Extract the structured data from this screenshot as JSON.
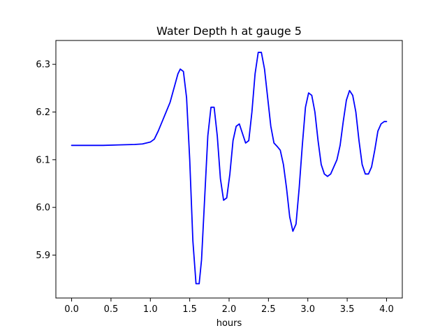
{
  "chart_data": {
    "type": "line",
    "title": "Water Depth h at gauge 5",
    "xlabel": "hours",
    "ylabel": "",
    "xlim": [
      -0.2,
      4.2
    ],
    "ylim": [
      5.81,
      6.35
    ],
    "grid": false,
    "x_ticks": [
      0.0,
      0.5,
      1.0,
      1.5,
      2.0,
      2.5,
      3.0,
      3.5,
      4.0
    ],
    "x_tick_labels": [
      "0.0",
      "0.5",
      "1.0",
      "1.5",
      "2.0",
      "2.5",
      "3.0",
      "3.5",
      "4.0"
    ],
    "y_ticks": [
      5.9,
      6.0,
      6.1,
      6.2,
      6.3
    ],
    "y_tick_labels": [
      "5.9",
      "6.0",
      "6.1",
      "6.2",
      "6.3"
    ],
    "series": [
      {
        "color": "#0000ff",
        "x": [
          0.0,
          0.2,
          0.4,
          0.6,
          0.8,
          0.9,
          1.0,
          1.05,
          1.1,
          1.15,
          1.2,
          1.25,
          1.3,
          1.35,
          1.38,
          1.42,
          1.46,
          1.5,
          1.54,
          1.58,
          1.62,
          1.65,
          1.69,
          1.73,
          1.77,
          1.81,
          1.85,
          1.89,
          1.93,
          1.97,
          2.01,
          2.05,
          2.09,
          2.13,
          2.17,
          2.21,
          2.25,
          2.29,
          2.33,
          2.37,
          2.41,
          2.45,
          2.49,
          2.53,
          2.57,
          2.61,
          2.65,
          2.69,
          2.73,
          2.77,
          2.81,
          2.85,
          2.89,
          2.93,
          2.97,
          3.01,
          3.05,
          3.09,
          3.13,
          3.17,
          3.21,
          3.25,
          3.29,
          3.33,
          3.37,
          3.41,
          3.45,
          3.49,
          3.53,
          3.57,
          3.61,
          3.65,
          3.69,
          3.73,
          3.77,
          3.81,
          3.85,
          3.89,
          3.93,
          3.97,
          4.0
        ],
        "y": [
          6.13,
          6.13,
          6.13,
          6.131,
          6.132,
          6.133,
          6.137,
          6.143,
          6.16,
          6.18,
          6.2,
          6.22,
          6.25,
          6.28,
          6.29,
          6.285,
          6.23,
          6.1,
          5.93,
          5.84,
          5.84,
          5.89,
          6.02,
          6.15,
          6.21,
          6.21,
          6.15,
          6.06,
          6.015,
          6.02,
          6.07,
          6.14,
          6.17,
          6.175,
          6.155,
          6.135,
          6.14,
          6.2,
          6.28,
          6.325,
          6.325,
          6.29,
          6.23,
          6.17,
          6.135,
          6.128,
          6.12,
          6.09,
          6.04,
          5.98,
          5.95,
          5.965,
          6.04,
          6.13,
          6.21,
          6.24,
          6.235,
          6.2,
          6.14,
          6.09,
          6.07,
          6.065,
          6.07,
          6.085,
          6.1,
          6.13,
          6.18,
          6.225,
          6.245,
          6.235,
          6.2,
          6.14,
          6.09,
          6.07,
          6.07,
          6.085,
          6.12,
          6.16,
          6.175,
          6.18,
          6.18
        ]
      }
    ]
  }
}
